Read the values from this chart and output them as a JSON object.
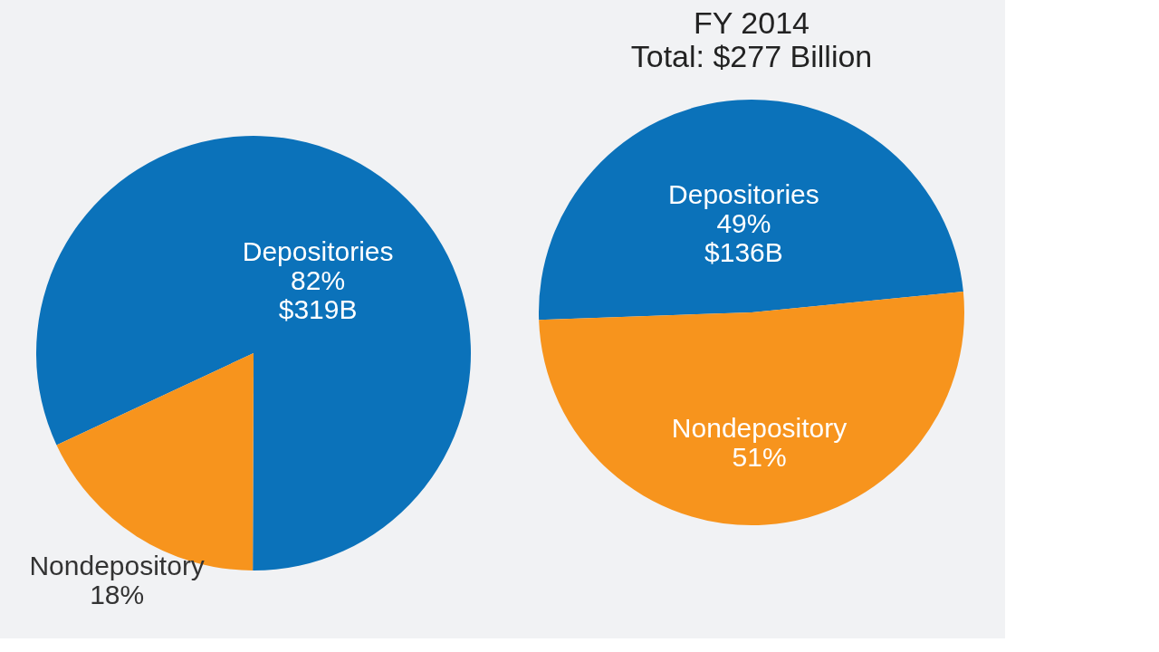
{
  "chart_data": [
    {
      "type": "pie",
      "categories": [
        "Depositories",
        "Nondepository"
      ],
      "values": [
        82,
        18
      ],
      "colors": [
        "#0b72ba",
        "#f7941d"
      ],
      "value_labels": [
        "82%\n$319B",
        "18%"
      ]
    },
    {
      "type": "pie",
      "title": "FY 2014",
      "subtitle": "Total: $277 Billion",
      "categories": [
        "Depositories",
        "Nondepository"
      ],
      "values": [
        49,
        51
      ],
      "colors": [
        "#0b72ba",
        "#f7941d"
      ],
      "value_labels": [
        "49%\n$136B",
        "51%"
      ]
    }
  ]
}
